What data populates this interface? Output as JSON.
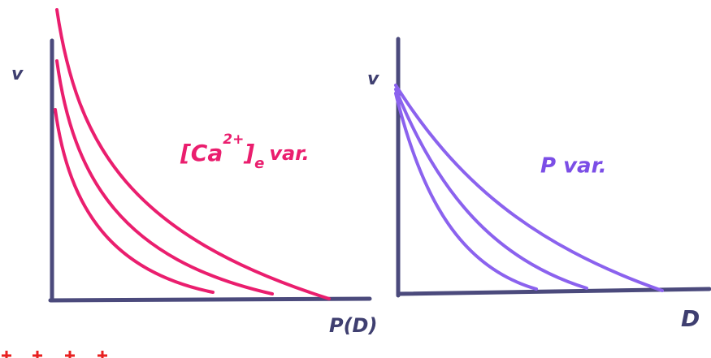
{
  "left": {
    "y_label": "v",
    "x_label": "P(D)",
    "annotation": {
      "open": "[Ca",
      "sup": "2+",
      "close": "]",
      "sub": "e",
      "suffix": "var."
    }
  },
  "right": {
    "y_label": "v",
    "x_label": "D",
    "annotation": "P var."
  }
}
